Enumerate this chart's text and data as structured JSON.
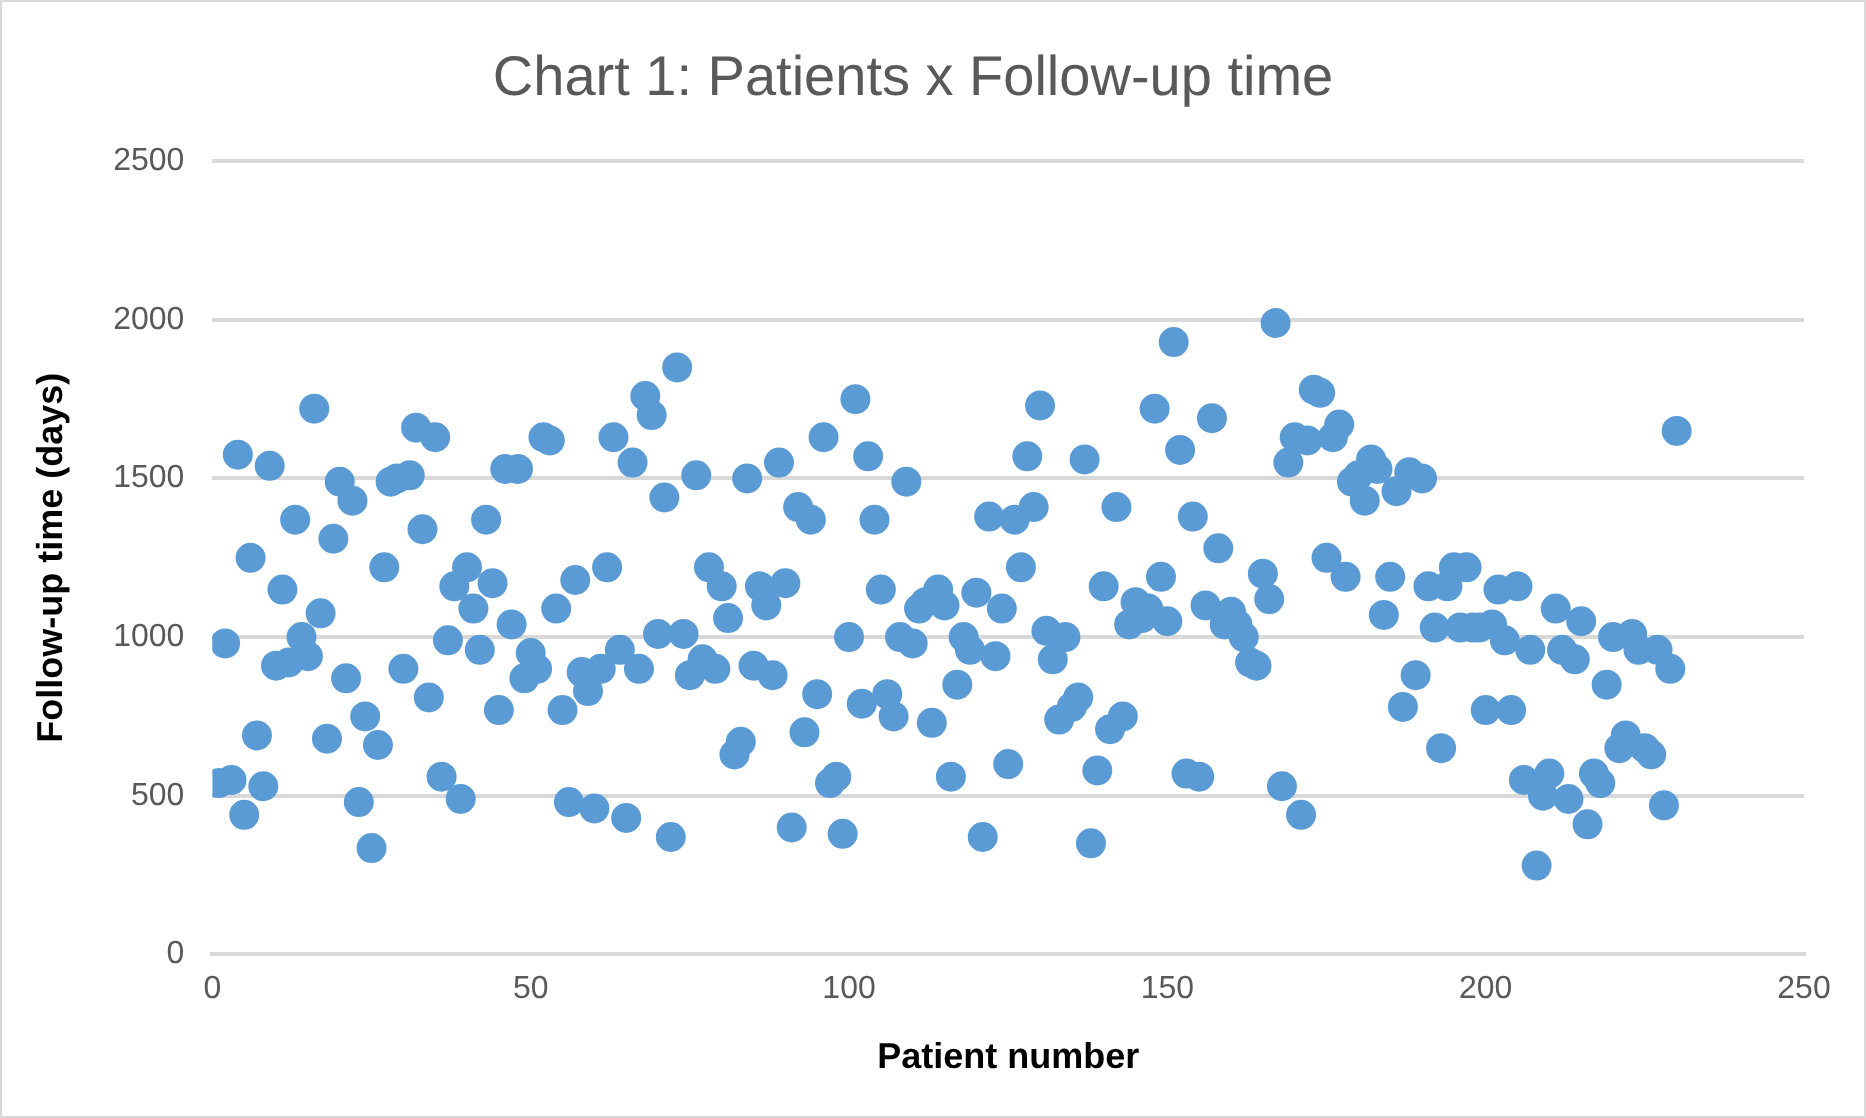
{
  "chart_data": {
    "type": "scatter",
    "title": "Chart 1: Patients x Follow-up time",
    "xlabel": "Patient number",
    "ylabel": "Follow-up time (days)",
    "color": "#5b9bd5",
    "marker": "circle",
    "grid": "y",
    "legend": false,
    "x": [
      1,
      2,
      3,
      4,
      5,
      6,
      7,
      8,
      9,
      10,
      11,
      12,
      13,
      14,
      15,
      16,
      17,
      18,
      19,
      20,
      21,
      22,
      23,
      24,
      25,
      26,
      27,
      28,
      29,
      30,
      31,
      32,
      33,
      34,
      35,
      36,
      37,
      38,
      39,
      40,
      41,
      42,
      43,
      44,
      45,
      46,
      47,
      48,
      49,
      50,
      51,
      52,
      53,
      54,
      55,
      56,
      57,
      58,
      59,
      60,
      61,
      62,
      63,
      64,
      65,
      66,
      67,
      68,
      69,
      70,
      71,
      72,
      73,
      74,
      75,
      76,
      77,
      78,
      79,
      80,
      81,
      82,
      83,
      84,
      85,
      86,
      87,
      88,
      89,
      90,
      91,
      92,
      93,
      94,
      95,
      96,
      97,
      98,
      99,
      100,
      101,
      102,
      103,
      104,
      105,
      106,
      107,
      108,
      109,
      110,
      111,
      112,
      113,
      114,
      115,
      116,
      117,
      118,
      119,
      120,
      121,
      122,
      123,
      124,
      125,
      126,
      127,
      128,
      129,
      130,
      131,
      132,
      133,
      134,
      135,
      136,
      137,
      138,
      139,
      140,
      141,
      142,
      143,
      144,
      145,
      146,
      147,
      148,
      149,
      150,
      151,
      152,
      153,
      154,
      155,
      156,
      157,
      158,
      159,
      160,
      161,
      162,
      163,
      164,
      165,
      166,
      167,
      168,
      169,
      170,
      171,
      172,
      173,
      174,
      175,
      176,
      177,
      178,
      179,
      180,
      181,
      182,
      183,
      184,
      185,
      186,
      187,
      188,
      189,
      190,
      191,
      192,
      193,
      194,
      195,
      196,
      197,
      198,
      199,
      200,
      201,
      202,
      203,
      204,
      205,
      206,
      207,
      208,
      209,
      210,
      211,
      212,
      213,
      214,
      215,
      216,
      217,
      218,
      219,
      220,
      221,
      222,
      223,
      224,
      225,
      226,
      227,
      228,
      229,
      230
    ],
    "values": [
      540,
      980,
      550,
      1575,
      440,
      1250,
      690,
      530,
      1540,
      910,
      1150,
      920,
      1370,
      1000,
      940,
      1720,
      1075,
      680,
      1310,
      1490,
      870,
      1430,
      480,
      750,
      335,
      660,
      1220,
      1490,
      1500,
      900,
      1510,
      1660,
      1340,
      810,
      1630,
      560,
      990,
      1160,
      490,
      1220,
      1090,
      960,
      1370,
      1170,
      770,
      1530,
      1040,
      1530,
      870,
      950,
      900,
      1630,
      1620,
      1090,
      770,
      480,
      1180,
      890,
      830,
      460,
      900,
      1220,
      1630,
      960,
      430,
      1550,
      900,
      1760,
      1700,
      1010,
      1440,
      370,
      1850,
      1010,
      880,
      1510,
      930,
      1220,
      900,
      1160,
      1060,
      630,
      670,
      1500,
      910,
      1160,
      1100,
      880,
      1550,
      1170,
      400,
      1410,
      700,
      1370,
      820,
      1630,
      540,
      560,
      380,
      1000,
      1750,
      790,
      1570,
      1370,
      1150,
      820,
      750,
      1000,
      1490,
      980,
      1090,
      1110,
      730,
      1150,
      1100,
      560,
      850,
      1000,
      960,
      1140,
      370,
      1380,
      940,
      1090,
      600,
      1370,
      1220,
      1570,
      1410,
      1730,
      1020,
      930,
      740,
      1000,
      780,
      810,
      1560,
      350,
      580,
      1160,
      710,
      1410,
      750,
      1040,
      1110,
      1060,
      1090,
      1720,
      1190,
      1050,
      1930,
      1590,
      570,
      1380,
      560,
      1100,
      1690,
      1280,
      1040,
      1080,
      1040,
      1000,
      920,
      910,
      1200,
      1120,
      1990,
      530,
      1550,
      1630,
      440,
      1620,
      1780,
      1770,
      1250,
      1630,
      1670,
      1190,
      1490,
      1510,
      1430,
      1560,
      1530,
      1070,
      1190,
      1460,
      780,
      1520,
      880,
      1500,
      1160,
      1030,
      650,
      1160,
      1220,
      1030,
      1220,
      1030,
      1030,
      770,
      1040,
      1150,
      990,
      770,
      1160,
      550,
      960,
      280,
      500,
      570,
      1090,
      960,
      490,
      930,
      1050,
      410,
      570,
      540,
      850,
      1000,
      650,
      690,
      1010,
      960,
      650,
      630,
      960,
      470,
      900,
      1650
    ],
    "xlim": [
      0,
      250
    ],
    "xticks": [
      0,
      50,
      100,
      150,
      200,
      250
    ],
    "ylim": [
      0,
      2500
    ],
    "yticks": [
      0,
      500,
      1000,
      1500,
      2000,
      2500
    ]
  }
}
